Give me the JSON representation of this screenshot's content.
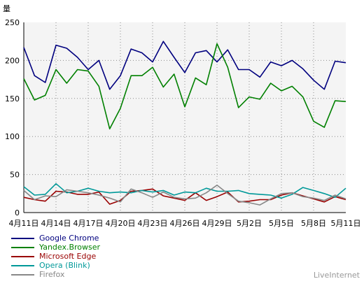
{
  "chart_data": {
    "type": "line",
    "title": "",
    "ylabel": "量",
    "xlabel": "",
    "ylim": [
      0,
      250
    ],
    "yticks": [
      "0",
      "50",
      "100",
      "150",
      "200",
      "250"
    ],
    "grid": true,
    "legend_position": "bottom-left",
    "x": [
      "4月11日",
      "4月12日",
      "4月13日",
      "4月14日",
      "4月15日",
      "4月16日",
      "4月17日",
      "4月18日",
      "4月19日",
      "4月20日",
      "4月21日",
      "4月22日",
      "4月23日",
      "4月24日",
      "4月25日",
      "4月26日",
      "4月27日",
      "4月28日",
      "4月29日",
      "4月30日",
      "5月1日",
      "5月2日",
      "5月3日",
      "5月4日",
      "5月5日",
      "5月6日",
      "5月7日",
      "5月8日",
      "5月9日",
      "5月10日",
      "5月11日"
    ],
    "xtick_labels": [
      "4月11日",
      "4月14日",
      "4月17日",
      "4月20日",
      "4月23日",
      "4月26日",
      "4月29日",
      "5月2日",
      "5月5日",
      "5月8日",
      "5月11日"
    ],
    "series": [
      {
        "name": "Google Chrome",
        "color": "#00007f",
        "values": [
          217,
          180,
          171,
          220,
          216,
          204,
          188,
          200,
          162,
          180,
          215,
          210,
          198,
          225,
          204,
          184,
          210,
          213,
          198,
          214,
          188,
          188,
          178,
          198,
          193,
          200,
          189,
          174,
          162,
          199,
          197
        ]
      },
      {
        "name": "Yandex.Browser",
        "color": "#008000",
        "values": [
          176,
          148,
          154,
          188,
          170,
          188,
          186,
          166,
          110,
          137,
          180,
          180,
          191,
          165,
          182,
          139,
          177,
          168,
          222,
          191,
          138,
          152,
          149,
          170,
          160,
          166,
          152,
          120,
          112,
          147,
          146
        ]
      },
      {
        "name": "Microsoft Edge",
        "color": "#990000",
        "values": [
          20,
          17,
          15,
          28,
          27,
          24,
          24,
          27,
          11,
          16,
          28,
          29,
          31,
          22,
          19,
          16,
          26,
          16,
          21,
          27,
          14,
          15,
          17,
          17,
          23,
          26,
          22,
          18,
          14,
          21,
          17
        ]
      },
      {
        "name": "Opera (Blink)",
        "color": "#009999",
        "values": [
          34,
          23,
          24,
          38,
          26,
          28,
          32,
          28,
          26,
          27,
          26,
          29,
          27,
          29,
          23,
          27,
          26,
          32,
          28,
          28,
          29,
          25,
          24,
          23,
          19,
          24,
          33,
          29,
          25,
          20,
          32
        ]
      },
      {
        "name": "Firefox",
        "color": "#888888",
        "values": [
          29,
          17,
          22,
          21,
          30,
          28,
          26,
          23,
          19,
          14,
          31,
          26,
          20,
          27,
          20,
          18,
          19,
          26,
          36,
          25,
          15,
          13,
          10,
          18,
          25,
          26,
          21,
          19,
          16,
          23,
          18
        ]
      }
    ]
  },
  "watermark": "LiveInternet"
}
